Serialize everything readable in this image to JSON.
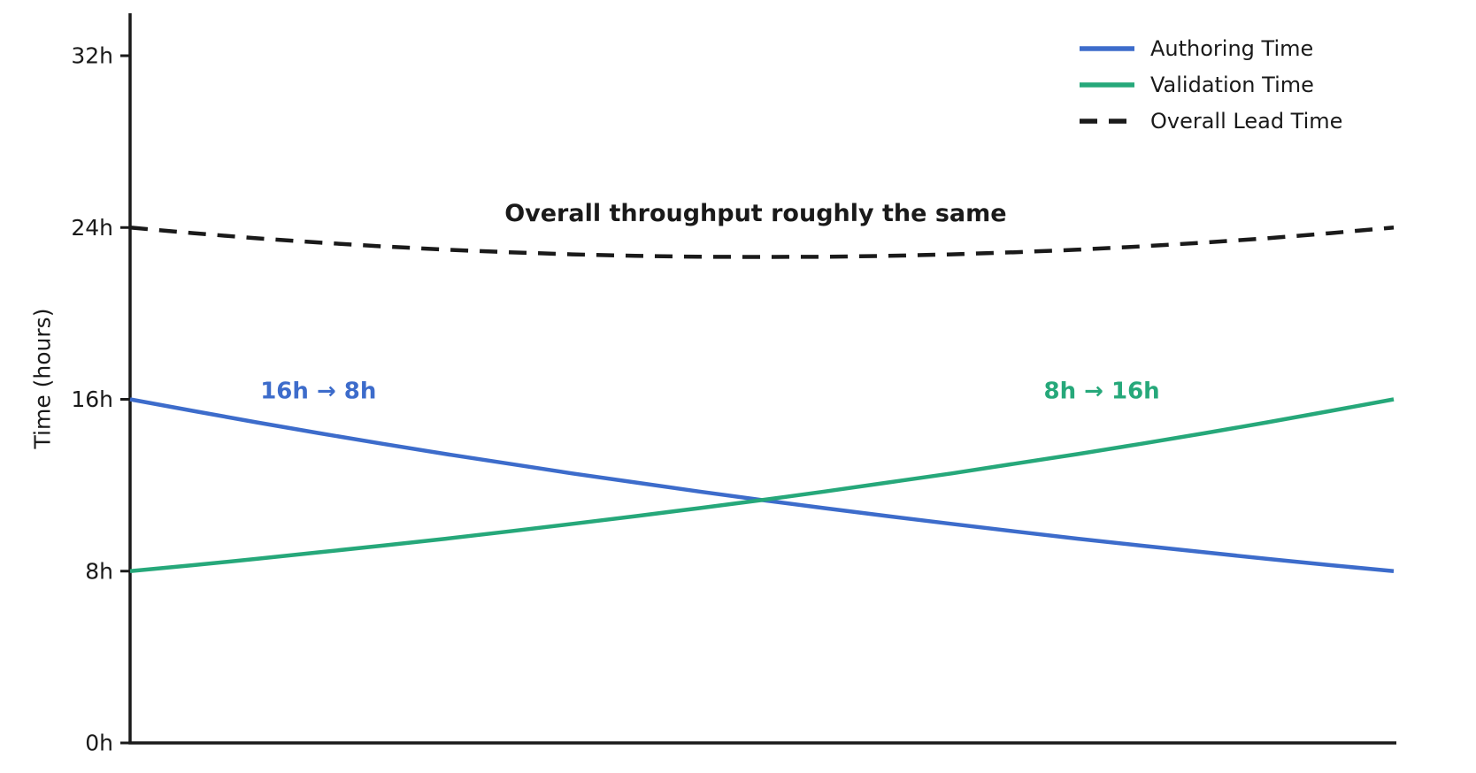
{
  "chart_data": {
    "type": "line",
    "title": "",
    "xlabel": "",
    "ylabel": "Time (hours)",
    "xlim": [
      0,
      1
    ],
    "ylim": [
      0,
      34
    ],
    "grid": false,
    "background": "#ffffff",
    "axis_color": "#1a1a1a",
    "legend_position": "upper-right",
    "yticks": [
      {
        "value": 0,
        "label": "0h"
      },
      {
        "value": 8,
        "label": "8h"
      },
      {
        "value": 16,
        "label": "16h"
      },
      {
        "value": 24,
        "label": "24h"
      },
      {
        "value": 32,
        "label": "32h"
      }
    ],
    "xticks": [],
    "x": [
      0,
      0.05,
      0.1,
      0.15,
      0.2,
      0.25,
      0.3,
      0.35,
      0.4,
      0.45,
      0.5,
      0.55,
      0.6,
      0.65,
      0.7,
      0.75,
      0.8,
      0.85,
      0.9,
      0.95,
      1
    ],
    "series": [
      {
        "name": "Authoring Time",
        "color": "#3d6ccb",
        "line_style": "solid",
        "start_value_hours": 16,
        "end_value_hours": 8,
        "values": [
          16,
          15.46,
          14.93,
          14.42,
          13.93,
          13.45,
          13,
          12.55,
          12.13,
          11.71,
          11.31,
          10.93,
          10.56,
          10.2,
          9.85,
          9.51,
          9.19,
          8.88,
          8.57,
          8.28,
          8
        ]
      },
      {
        "name": "Validation Time",
        "color": "#26a87a",
        "line_style": "solid",
        "start_value_hours": 8,
        "end_value_hours": 16,
        "values": [
          8,
          8.28,
          8.57,
          8.88,
          9.19,
          9.51,
          9.85,
          10.2,
          10.56,
          10.93,
          11.31,
          11.71,
          12.13,
          12.55,
          13,
          13.45,
          13.93,
          14.42,
          14.93,
          15.46,
          16
        ]
      },
      {
        "name": "Overall Lead Time",
        "color": "#1a1a1a",
        "line_style": "dashed",
        "start_value_hours": 24,
        "end_value_hours": 24,
        "values": [
          24,
          23.74,
          23.5,
          23.3,
          23.12,
          22.97,
          22.85,
          22.75,
          22.68,
          22.64,
          22.63,
          22.64,
          22.68,
          22.75,
          22.85,
          22.97,
          23.12,
          23.3,
          23.5,
          23.74,
          24
        ]
      }
    ],
    "annotations": [
      {
        "text": "Overall throughput roughly the same",
        "color": "#1a1a1a",
        "bold": true,
        "x": 0.495,
        "y": 24.3
      },
      {
        "text": "16h → 8h",
        "color": "#3d6ccb",
        "bold": true,
        "x": 0.149,
        "y": 16.05
      },
      {
        "text": "8h → 16h",
        "color": "#26a87a",
        "bold": true,
        "x": 0.769,
        "y": 16.05
      }
    ]
  }
}
